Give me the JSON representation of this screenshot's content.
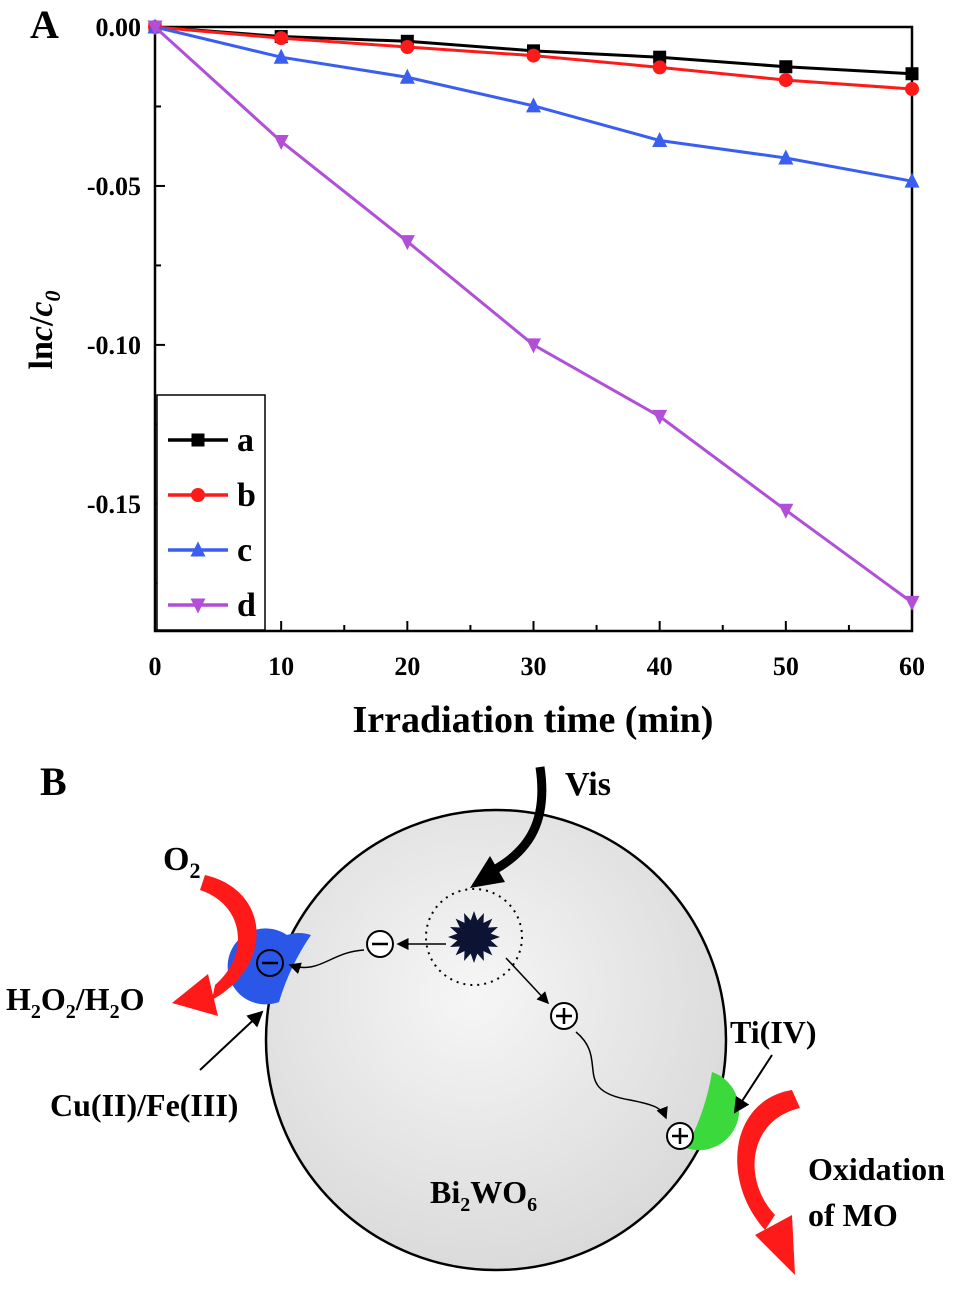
{
  "panel_a": {
    "label": "A",
    "chart_data": {
      "type": "line",
      "xlabel": "Irradiation time (min)",
      "ylabel_main": "ln",
      "ylabel_c": "c",
      "ylabel_slash": "/",
      "ylabel_c0": "c",
      "ylabel_sub": "0",
      "xlim": [
        0,
        60
      ],
      "ylim": [
        -0.19,
        0.0
      ],
      "xticks": [
        0,
        10,
        20,
        30,
        40,
        50,
        60
      ],
      "xtick_labels": [
        "0",
        "10",
        "20",
        "30",
        "40",
        "50",
        "60"
      ],
      "yticks": [
        0.0,
        -0.05,
        -0.1,
        -0.15
      ],
      "ytick_labels": [
        "0.00",
        "-0.05",
        "-0.10",
        "-0.15"
      ],
      "x": [
        0,
        10,
        20,
        30,
        40,
        50,
        60
      ],
      "grid": false,
      "legend_position": "bottom-left",
      "series": [
        {
          "name": "a",
          "color": "#000000",
          "marker": "square",
          "values": [
            0,
            -0.003,
            -0.0045,
            -0.0075,
            -0.0095,
            -0.0125,
            -0.0147
          ]
        },
        {
          "name": "b",
          "color": "#ff1a1a",
          "marker": "circle",
          "values": [
            0,
            -0.0035,
            -0.0063,
            -0.009,
            -0.0127,
            -0.0167,
            -0.0195
          ]
        },
        {
          "name": "c",
          "color": "#3a5ff0",
          "marker": "triangle-up",
          "values": [
            0,
            -0.0095,
            -0.0158,
            -0.0248,
            -0.0357,
            -0.0412,
            -0.0485
          ]
        },
        {
          "name": "d",
          "color": "#b14fd8",
          "marker": "triangle-down",
          "values": [
            0,
            -0.036,
            -0.0675,
            -0.1,
            -0.1225,
            -0.152,
            -0.181
          ]
        }
      ]
    }
  },
  "panel_b": {
    "label": "B",
    "vis": "Vis",
    "o2_main": "O",
    "o2_sub": "2",
    "h2o2_parts": [
      "H",
      "2",
      "O",
      "2",
      "/H",
      "2",
      "O"
    ],
    "cu_fe": "Cu(II)/Fe(III)",
    "ti": "Ti(IV)",
    "oxidation_line1": "Oxidation",
    "oxidation_line2": "of MO",
    "bi2wo6_parts": [
      "Bi",
      "2",
      "WO",
      "6"
    ],
    "minus_symbol": "⊖",
    "plus_symbol": "⊕",
    "colors": {
      "particle": "#e9e9e9",
      "cu_fe_site": "#2a57e8",
      "ti_site": "#3cd93c",
      "arrow": "#ff1a1a",
      "excitation": "#0d1433"
    }
  }
}
